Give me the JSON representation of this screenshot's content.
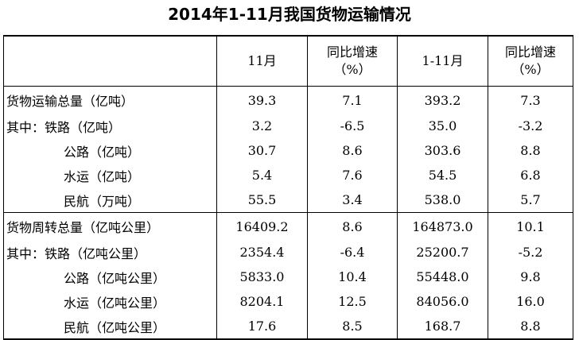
{
  "title": "2014年1-11月我国货物运输情况",
  "columns": [
    "",
    "11月",
    "同比增速（%）",
    "1-11月",
    "同比增速（%）"
  ],
  "header": {
    "col1": "11月",
    "col2_line1": "同比增速",
    "col2_line2": "（%）",
    "col3": "1-11月",
    "col4_line1": "同比增速",
    "col4_line2": "（%）"
  },
  "rows": [
    {
      "label": "货物运输总量（亿吨）",
      "m11": "39.3",
      "m11_growth": "7.1",
      "ytd": "393.2",
      "ytd_growth": "7.3"
    },
    {
      "label": "其中：铁路（亿吨）",
      "m11": "3.2",
      "m11_growth": "-6.5",
      "ytd": "35.0",
      "ytd_growth": "-3.2"
    },
    {
      "label": "公路（亿吨）",
      "m11": "30.7",
      "m11_growth": "8.6",
      "ytd": "303.6",
      "ytd_growth": "8.8"
    },
    {
      "label": "水运（亿吨）",
      "m11": "5.4",
      "m11_growth": "7.6",
      "ytd": "54.5",
      "ytd_growth": "6.8"
    },
    {
      "label": "民航（万吨）",
      "m11": "55.5",
      "m11_growth": "3.4",
      "ytd": "538.0",
      "ytd_growth": "5.7"
    },
    {
      "label": "货物周转总量（亿吨公里）",
      "m11": "16409.2",
      "m11_growth": "8.6",
      "ytd": "164873.0",
      "ytd_growth": "10.1"
    },
    {
      "label": "其中：铁路（亿吨公里）",
      "m11": "2354.4",
      "m11_growth": "-6.4",
      "ytd": "25200.7",
      "ytd_growth": "-5.2"
    },
    {
      "label": "公路（亿吨公里）",
      "m11": "5833.0",
      "m11_growth": "10.4",
      "ytd": "55448.0",
      "ytd_growth": "9.8"
    },
    {
      "label": "水运（亿吨公里）",
      "m11": "8204.1",
      "m11_growth": "12.5",
      "ytd": "84056.0",
      "ytd_growth": "16.0"
    },
    {
      "label": "民航（亿吨公里）",
      "m11": "17.6",
      "m11_growth": "8.5",
      "ytd": "168.7",
      "ytd_growth": "8.8"
    }
  ]
}
